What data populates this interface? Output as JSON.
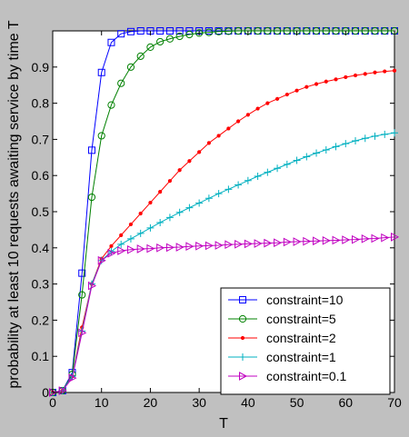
{
  "chart_data": {
    "type": "line",
    "title": "",
    "xlabel": "T",
    "ylabel": "probability at least 10 requests awaiting service by time T",
    "xlim": [
      0,
      70
    ],
    "ylim": [
      0,
      1
    ],
    "x_ticks": [
      0,
      10,
      20,
      30,
      40,
      50,
      60,
      70
    ],
    "y_ticks": [
      0,
      0.1,
      0.2,
      0.3,
      0.4,
      0.5,
      0.6,
      0.7,
      0.8,
      0.9
    ],
    "grid": false,
    "legend_position": "bottom-right",
    "x": [
      0,
      2,
      4,
      6,
      8,
      10,
      12,
      14,
      16,
      18,
      20,
      22,
      24,
      26,
      28,
      30,
      32,
      34,
      36,
      38,
      40,
      42,
      44,
      46,
      48,
      50,
      52,
      54,
      56,
      58,
      60,
      62,
      64,
      66,
      68,
      70
    ],
    "series": [
      {
        "name": "constraint=10",
        "color": "#0000ff",
        "marker": "square",
        "values": [
          0,
          0.005,
          0.055,
          0.33,
          0.67,
          0.885,
          0.968,
          0.992,
          0.998,
          1,
          1,
          1,
          1,
          1,
          1,
          1,
          1,
          1,
          1,
          1,
          1,
          1,
          1,
          1,
          1,
          1,
          1,
          1,
          1,
          1,
          1,
          1,
          1,
          1,
          1,
          1
        ]
      },
      {
        "name": "constraint=5",
        "color": "#008000",
        "marker": "circle",
        "values": [
          0,
          0.005,
          0.05,
          0.27,
          0.54,
          0.71,
          0.795,
          0.855,
          0.9,
          0.93,
          0.955,
          0.97,
          0.978,
          0.985,
          0.99,
          0.994,
          0.996,
          0.998,
          0.999,
          1,
          1,
          1,
          1,
          1,
          1,
          1,
          1,
          1,
          1,
          1,
          1,
          1,
          1,
          1,
          1,
          1
        ]
      },
      {
        "name": "constraint=2",
        "color": "#ff0000",
        "marker": "dot",
        "values": [
          0,
          0.005,
          0.045,
          0.18,
          0.3,
          0.37,
          0.405,
          0.435,
          0.465,
          0.495,
          0.525,
          0.555,
          0.585,
          0.615,
          0.64,
          0.665,
          0.69,
          0.71,
          0.73,
          0.75,
          0.768,
          0.785,
          0.8,
          0.812,
          0.824,
          0.835,
          0.845,
          0.853,
          0.86,
          0.866,
          0.872,
          0.877,
          0.881,
          0.885,
          0.888,
          0.89
        ]
      },
      {
        "name": "constraint=1",
        "color": "#00b0c0",
        "marker": "plus",
        "values": [
          0,
          0.005,
          0.045,
          0.17,
          0.3,
          0.365,
          0.39,
          0.41,
          0.425,
          0.44,
          0.455,
          0.47,
          0.484,
          0.498,
          0.511,
          0.524,
          0.537,
          0.55,
          0.562,
          0.574,
          0.586,
          0.598,
          0.609,
          0.62,
          0.631,
          0.642,
          0.652,
          0.662,
          0.671,
          0.68,
          0.688,
          0.696,
          0.703,
          0.709,
          0.714,
          0.718
        ]
      },
      {
        "name": "constraint=0.1",
        "color": "#c000c0",
        "marker": "triangle-right",
        "values": [
          0,
          0.005,
          0.04,
          0.165,
          0.295,
          0.365,
          0.385,
          0.392,
          0.395,
          0.397,
          0.398,
          0.4,
          0.401,
          0.402,
          0.404,
          0.405,
          0.406,
          0.407,
          0.409,
          0.41,
          0.411,
          0.412,
          0.413,
          0.414,
          0.416,
          0.417,
          0.418,
          0.419,
          0.42,
          0.421,
          0.422,
          0.423,
          0.425,
          0.426,
          0.428,
          0.43
        ]
      }
    ]
  }
}
